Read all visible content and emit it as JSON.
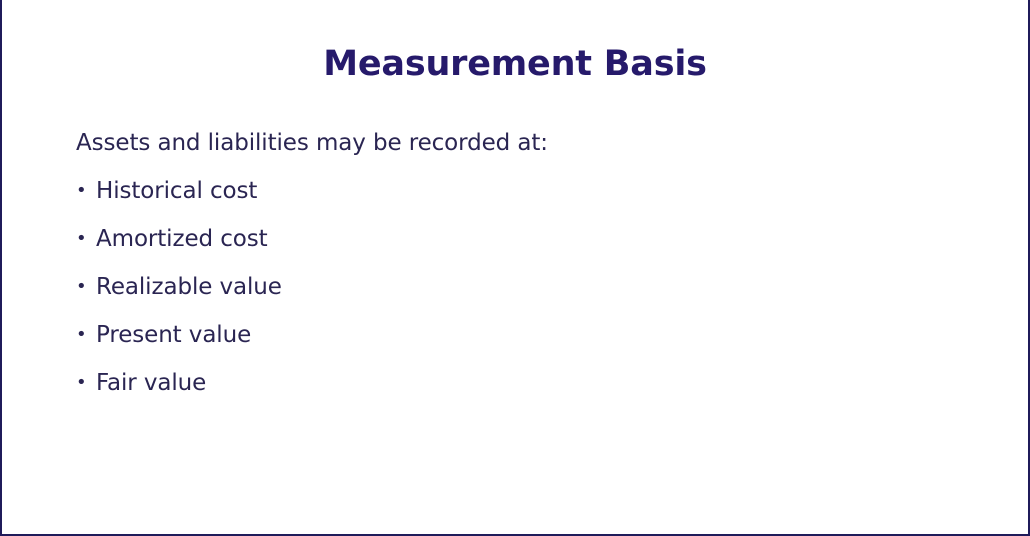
{
  "slide": {
    "title": "Measurement Basis",
    "intro": "Assets and liabilities may be recorded at:",
    "bullets": [
      "Historical cost",
      "Amortized cost",
      "Realizable value",
      "Present value",
      "Fair value"
    ],
    "bullet_glyph": "•"
  },
  "colors": {
    "title": "#261a6b",
    "text": "#2a2552",
    "border": "#1f1b5a",
    "background": "#ffffff"
  }
}
